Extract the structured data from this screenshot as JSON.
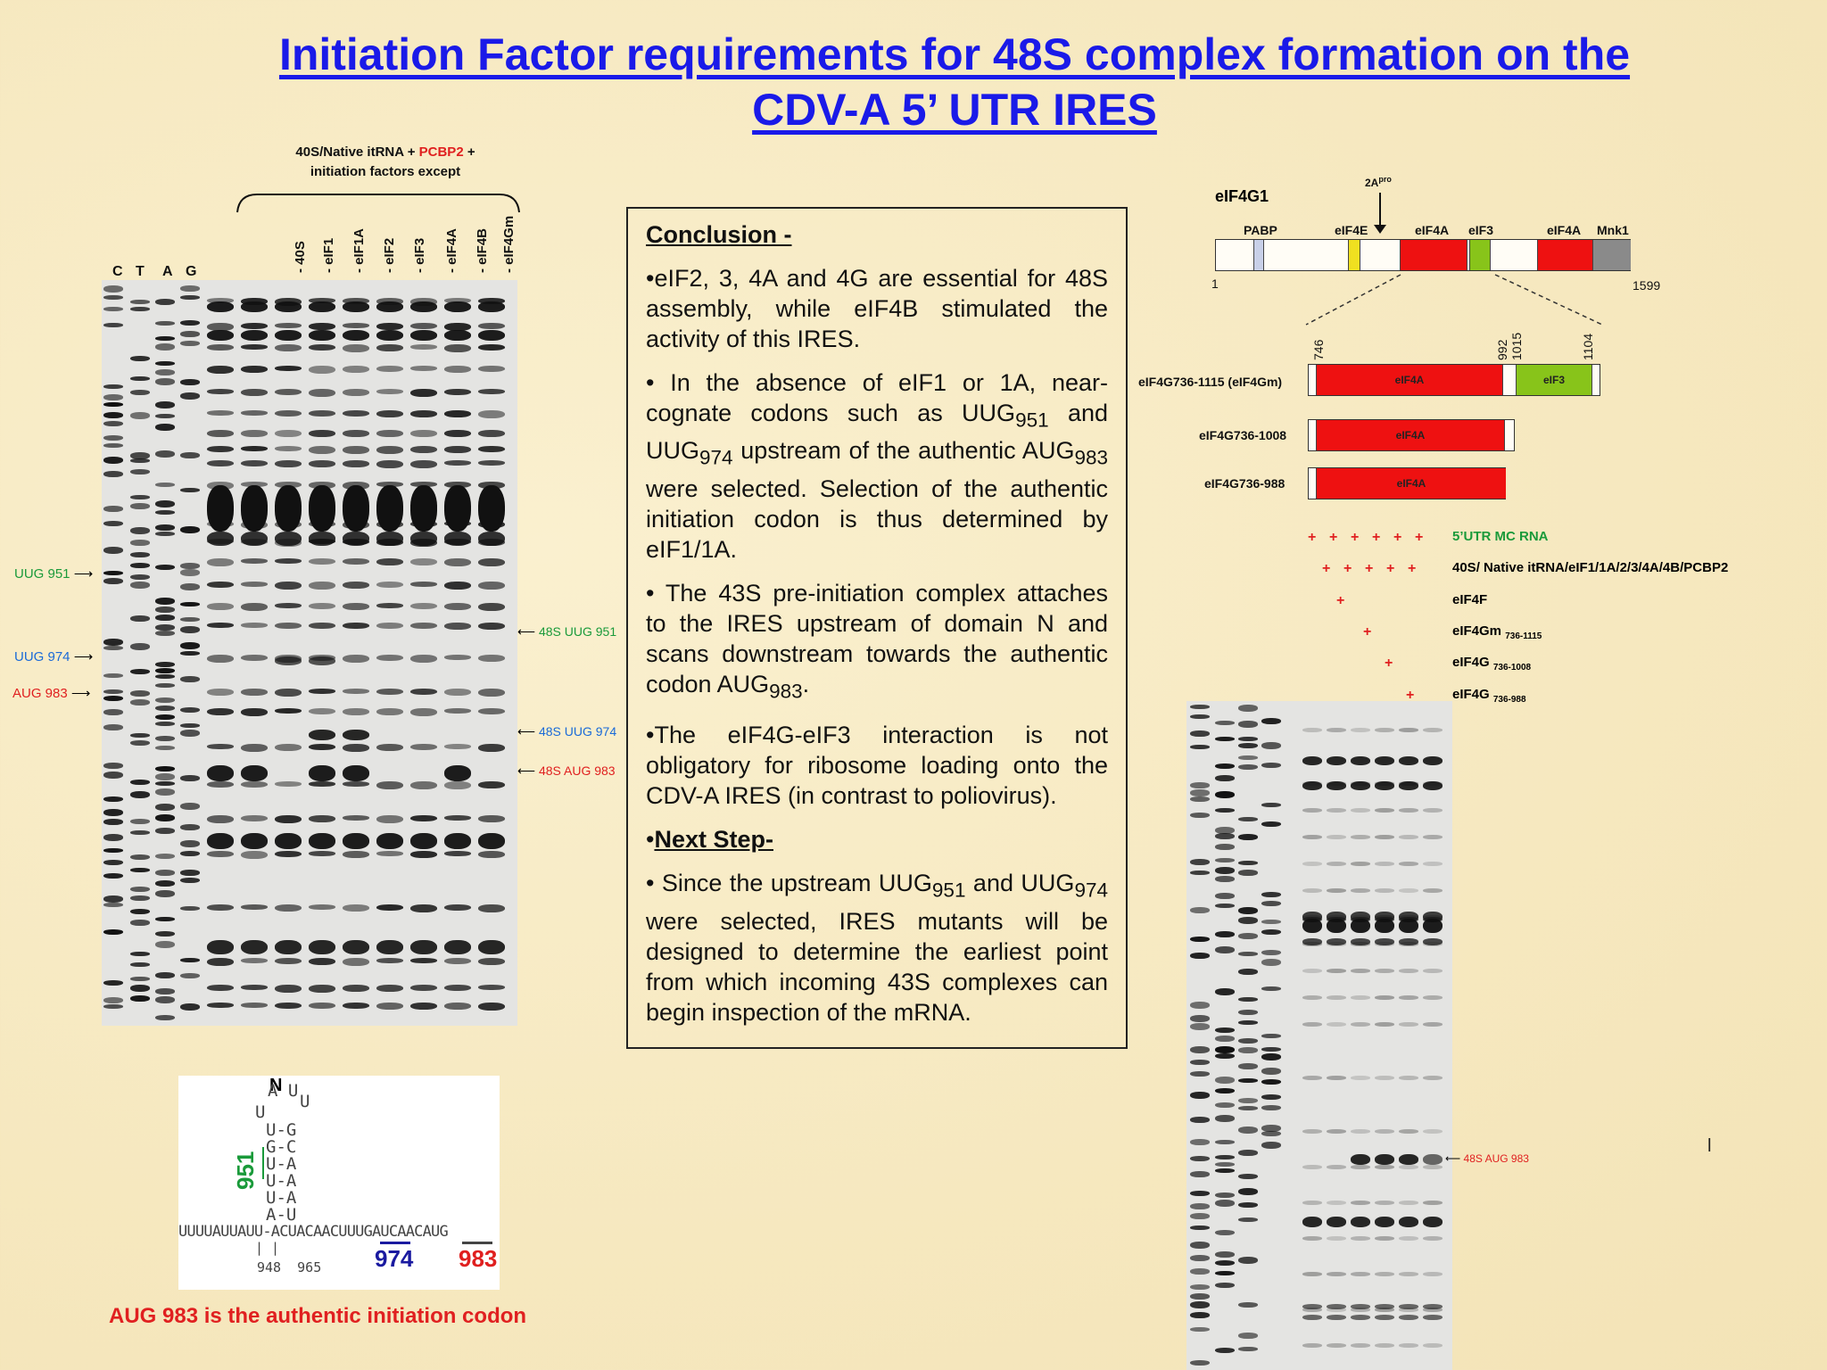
{
  "title": {
    "line1": "Initiation Factor requirements for 48S complex formation on the",
    "line2": "CDV-A 5’ UTR IRES"
  },
  "left_gel": {
    "header_line1_a": "40S/Native itRNA + ",
    "header_line1_b": "PCBP2",
    "header_line1_c": " +",
    "header_line2": "initiation factors except",
    "sequencing_lanes": [
      "C",
      "T",
      "A",
      "G"
    ],
    "lanes": [
      "- 40S",
      "- eIF1",
      "- eIF1A",
      "- eIF2",
      "- eIF3",
      "- eIF4A",
      "- eIF4B",
      "- eIF4Gm"
    ],
    "left_markers": [
      {
        "label": "UUG 951",
        "color": "#1a9a3a"
      },
      {
        "label": "UUG 974",
        "color": "#1a6ad8"
      },
      {
        "label": "AUG 983",
        "color": "#e02020"
      }
    ],
    "right_markers": [
      {
        "label": "48S UUG 951",
        "color": "#1a9a3a"
      },
      {
        "label": "48S UUG 974",
        "color": "#1a6ad8"
      },
      {
        "label": "48S AUG 983",
        "color": "#e02020"
      }
    ]
  },
  "structure": {
    "domain": "N",
    "loop_top": "A U",
    "loop_u1": "U",
    "loop_u2": "U",
    "stem": [
      "U-G",
      "G-C",
      "U-A",
      "U-A",
      "U-A",
      "A-U"
    ],
    "sequence": "UUUUAUUAUU-ACUACAACUUUGAUCAACAUG",
    "ticks": "| |",
    "pos_951": "951",
    "pos_974": "974",
    "pos_983": "983",
    "pos_948_965": "948  965",
    "colors": {
      "g951": "#1a9a3a",
      "b974": "#1a1aa0",
      "r983": "#e02020"
    }
  },
  "caption": "AUG 983 is the authentic initiation codon",
  "conclusion": {
    "heading": "Conclusion -",
    "p1": "•eIF2, 3, 4A and 4G are essential for 48S assembly, while eIF4B stimulated the activity of this IRES.",
    "p2_pre": "• In the absence of eIF1 or 1A, near-cognate codons such as UUG",
    "p2_sub1": "951",
    "p2_mid1": " and UUG",
    "p2_sub2": "974",
    "p2_mid2": " upstream of the authentic AUG",
    "p2_sub3": "983",
    "p2_post": " were selected. Selection of the authentic initiation codon is thus determined by eIF1/1A.",
    "p3_pre": "• The 43S pre-initiation complex attaches to the IRES upstream of domain N and scans downstream towards the authentic codon AUG",
    "p3_sub": "983",
    "p3_post": ".",
    "p4": "•The eIF4G-eIF3 interaction is not obligatory for ribosome loading onto the CDV-A IRES (in contrast to poliovirus).",
    "next_bullet": "•",
    "next_heading": "Next Step-",
    "p5_pre": "• Since the upstream UUG",
    "p5_sub1": "951",
    "p5_mid": " and UUG",
    "p5_sub2": "974",
    "p5_post": " were selected, IRES mutants will be designed to determine the earliest point from which incoming 43S complexes can begin inspection of the mRNA."
  },
  "diagram": {
    "protein": "eIF4G1",
    "protease": "2A",
    "protease_sup": "pro",
    "domains": [
      "PABP",
      "eIF4E",
      "eIF4A",
      "eIF3",
      "eIF4A",
      "Mnk1"
    ],
    "start": "1",
    "end": "1599",
    "positions": [
      "746",
      "992",
      "1015",
      "1104"
    ],
    "fragments": [
      {
        "name": "eIF4G736-1115 (eIF4Gm)",
        "domains": [
          "eIF4A",
          "eIF3"
        ]
      },
      {
        "name": "eIF4G736-1008",
        "domains": [
          "eIF4A"
        ]
      },
      {
        "name": "eIF4G736-988",
        "domains": [
          "eIF4A"
        ]
      }
    ],
    "colors": {
      "eIF4A": "#ee1111",
      "eIF3": "#88c41a",
      "eIF4E": "#f0e020",
      "Mnk1": "#8a8a8a",
      "PABP": "#c8d0e8"
    }
  },
  "right_gel": {
    "conditions": [
      {
        "label": "5’UTR MC RNA",
        "sub": "",
        "color": "#1a9a3a"
      },
      {
        "label": "40S/ Native itRNA/eIF1/1A/2/3/4A/4B/PCBP2",
        "sub": "",
        "color": "#111111"
      },
      {
        "label": "eIF4F",
        "sub": "",
        "color": "#111111"
      },
      {
        "label": "eIF4Gm",
        "sub": "736-1115",
        "color": "#111111"
      },
      {
        "label": "eIF4G",
        "sub": "736-1008",
        "color": "#111111"
      },
      {
        "label": "eIF4G",
        "sub": "736-988",
        "color": "#111111"
      }
    ],
    "plus": "+",
    "marker": "48S AUG 983",
    "marker_color": "#e02020",
    "stray_mark": "l"
  }
}
